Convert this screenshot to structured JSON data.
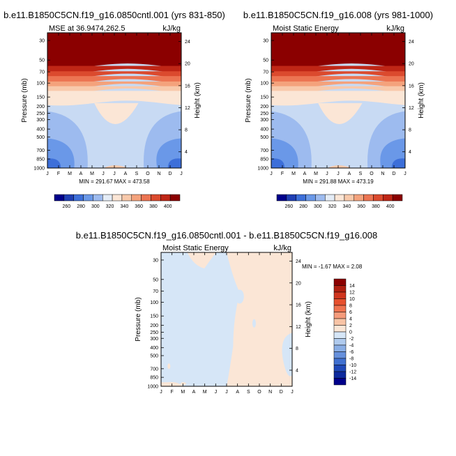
{
  "chart_data": [
    {
      "type": "heatmap",
      "title": "b.e11.B1850C5CN.f19_g16.0850cntl.001 (yrs 831-850)",
      "left_label": "MSE at 36.9474,262.5",
      "right_label": "kJ/kg",
      "ylabel": "Pressure (mb)",
      "y2label": "Height (km)",
      "x_ticks": [
        "J",
        "F",
        "M",
        "A",
        "M",
        "J",
        "J",
        "A",
        "S",
        "O",
        "N",
        "D",
        "J"
      ],
      "y_ticks": [
        "30",
        "50",
        "70",
        "100",
        "150",
        "200",
        "250",
        "300",
        "400",
        "500",
        "700",
        "850",
        "1000"
      ],
      "y2_ticks": [
        "24",
        "20",
        "16",
        "12",
        "8",
        "4"
      ],
      "min": 291.67,
      "max": 473.58,
      "stats_text": "MIN = 291.67 MAX = 473.58",
      "levels": [
        260,
        280,
        300,
        320,
        340,
        360,
        380,
        400
      ],
      "colorbar_labels": [
        "260",
        "280",
        "300",
        "320",
        "340",
        "360",
        "380",
        "400"
      ],
      "band_values": [
        420,
        400,
        390,
        380,
        370,
        360,
        350,
        340
      ]
    },
    {
      "type": "heatmap",
      "title": "b.e11.B1850C5CN.f19_g16.008 (yrs 981-1000)",
      "left_label": "Moist Static Energy",
      "right_label": "kJ/kg",
      "ylabel": "Pressure (mb)",
      "y2label": "Height (km)",
      "x_ticks": [
        "J",
        "F",
        "M",
        "A",
        "M",
        "J",
        "J",
        "A",
        "S",
        "O",
        "N",
        "D",
        "J"
      ],
      "y_ticks": [
        "30",
        "50",
        "70",
        "100",
        "150",
        "200",
        "250",
        "300",
        "400",
        "500",
        "700",
        "850",
        "1000"
      ],
      "y2_ticks": [
        "24",
        "20",
        "16",
        "12",
        "8",
        "4"
      ],
      "min": 291.88,
      "max": 473.19,
      "stats_text": "MIN = 291.88 MAX = 473.19",
      "levels": [
        260,
        280,
        300,
        320,
        340,
        360,
        380,
        400
      ],
      "colorbar_labels": [
        "260",
        "280",
        "300",
        "320",
        "340",
        "360",
        "380",
        "400"
      ],
      "band_values": [
        420,
        400,
        390,
        380,
        370,
        360,
        350,
        340
      ]
    },
    {
      "type": "heatmap",
      "title": "b.e11.B1850C5CN.f19_g16.0850cntl.001 - b.e11.B1850C5CN.f19_g16.008",
      "left_label": "Moist Static Energy",
      "right_label": "kJ/kg",
      "ylabel": "Pressure (mb)",
      "y2label": "Height (km)",
      "x_ticks": [
        "J",
        "F",
        "M",
        "A",
        "M",
        "J",
        "J",
        "A",
        "S",
        "O",
        "N",
        "D",
        "J"
      ],
      "y_ticks": [
        "30",
        "50",
        "70",
        "100",
        "150",
        "200",
        "250",
        "300",
        "400",
        "500",
        "700",
        "850",
        "1000"
      ],
      "y2_ticks": [
        "24",
        "20",
        "16",
        "12",
        "8",
        "4"
      ],
      "min": -1.67,
      "max": 2.08,
      "stats_text": "MIN =  -1.67 MAX =   2.08",
      "levels": [
        -14,
        -12,
        -10,
        -8,
        -6,
        -4,
        -2,
        0,
        2,
        4,
        6,
        8,
        10,
        12,
        14
      ],
      "colorbar_labels": [
        "14",
        "12",
        "10",
        "8",
        "6",
        "4",
        "2",
        "0",
        "-2",
        "-4",
        "-6",
        "-8",
        "-10",
        "-12",
        "-14"
      ]
    }
  ],
  "palette": {
    "absolute": [
      "#00008b",
      "#1f3fb4",
      "#3d6fd9",
      "#6a98e8",
      "#9dbbef",
      "#c8daf3",
      "#e4ecf6",
      "#fbe6d6",
      "#f8c9ab",
      "#f4a27c",
      "#ec7452",
      "#db4a2e",
      "#bf2616",
      "#8b0000"
    ],
    "diff": [
      "#8b0000",
      "#b01f10",
      "#d0351e",
      "#e6502e",
      "#ef7350",
      "#f59b7b",
      "#f8c4a6",
      "#fbe6d6",
      "#d6e6f7",
      "#b0cbee",
      "#8aaee5",
      "#6690dc",
      "#4070d0",
      "#1f49b8",
      "#0d2a9e",
      "#00008b"
    ]
  }
}
